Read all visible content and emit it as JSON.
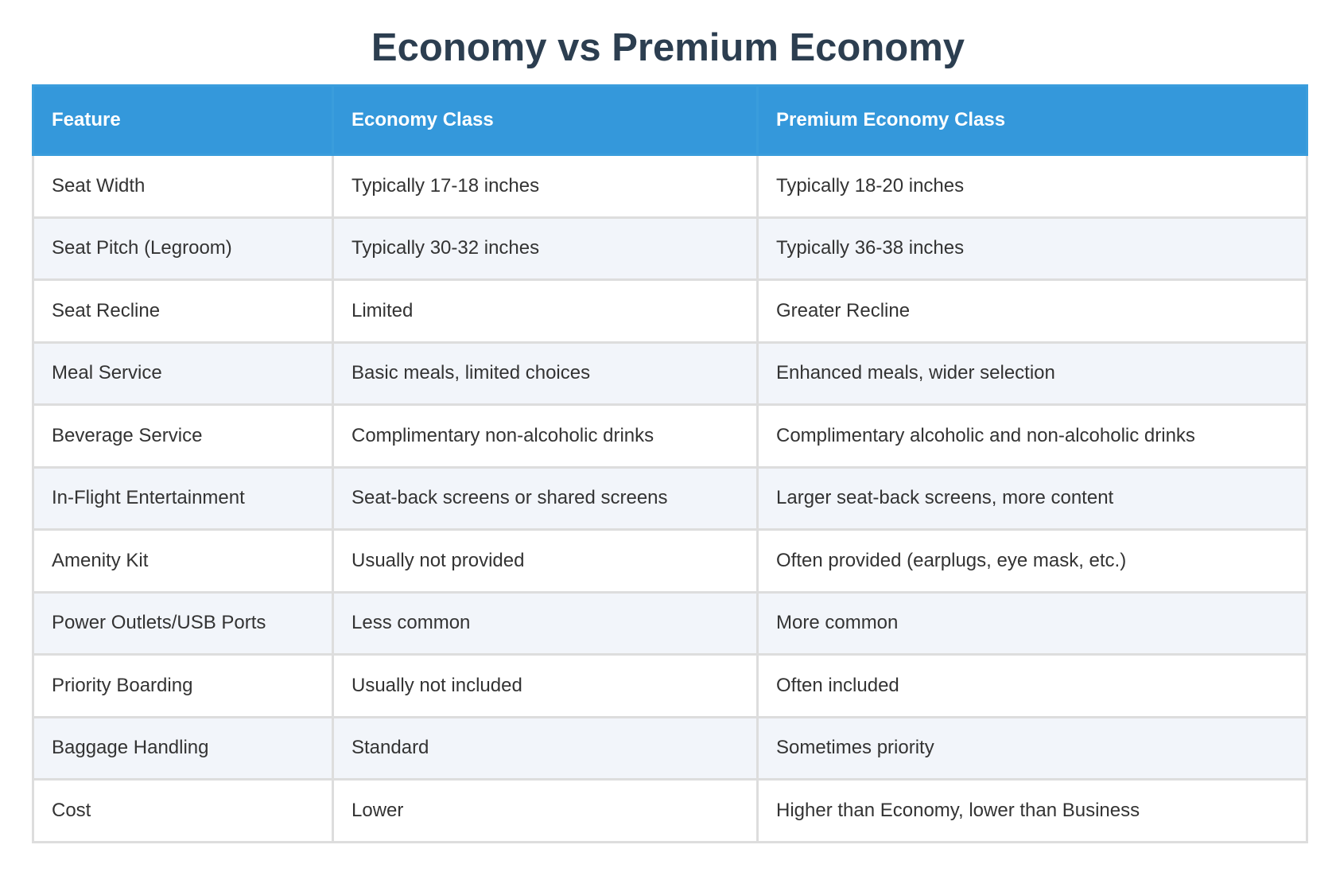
{
  "title": "Economy vs Premium Economy",
  "chart_data": {
    "type": "table",
    "title": "Economy vs Premium Economy",
    "columns": [
      "Feature",
      "Economy Class",
      "Premium Economy Class"
    ],
    "rows": [
      [
        "Seat Width",
        "Typically 17-18 inches",
        "Typically 18-20 inches"
      ],
      [
        "Seat Pitch (Legroom)",
        "Typically 30-32 inches",
        "Typically 36-38 inches"
      ],
      [
        "Seat Recline",
        "Limited",
        "Greater Recline"
      ],
      [
        "Meal Service",
        "Basic meals, limited choices",
        "Enhanced meals, wider selection"
      ],
      [
        "Beverage Service",
        "Complimentary non-alcoholic drinks",
        "Complimentary alcoholic and non-alcoholic drinks"
      ],
      [
        "In-Flight Entertainment",
        "Seat-back screens or shared screens",
        "Larger seat-back screens, more content"
      ],
      [
        "Amenity Kit",
        "Usually not provided",
        "Often provided (earplugs, eye mask, etc.)"
      ],
      [
        "Power Outlets/USB Ports",
        "Less common",
        "More common"
      ],
      [
        "Priority Boarding",
        "Usually not included",
        "Often included"
      ],
      [
        "Baggage Handling",
        "Standard",
        "Sometimes priority"
      ],
      [
        "Cost",
        "Lower",
        "Higher than Economy, lower than Business"
      ]
    ]
  },
  "colors": {
    "header_bg": "#3498db",
    "header_text": "#ffffff",
    "title_text": "#2c3e50",
    "row_alt_bg": "#f2f5fa",
    "border": "#dddddd"
  }
}
